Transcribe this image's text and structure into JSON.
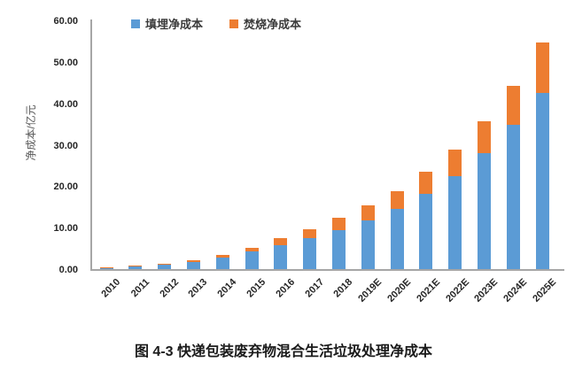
{
  "caption": "图 4-3 快递包装废弃物混合生活垃圾处理净成本",
  "colors": {
    "background": "#FFFFFF",
    "axis": "#A6A6A6",
    "tick_text": "#262626",
    "axis_title_text": "#595959",
    "caption_text": "#1A1A1A",
    "landfill_blue": "#5B9BD5",
    "incineration_orange": "#ED7D31"
  },
  "chart_data": {
    "type": "bar",
    "stacked": true,
    "title": "",
    "xlabel": "",
    "ylabel": "净成本/亿元",
    "ylim": [
      0,
      60
    ],
    "ytick_step": 10,
    "ytick_labels": [
      "0.00",
      "10.00",
      "20.00",
      "30.00",
      "40.00",
      "50.00",
      "60.00"
    ],
    "grid": false,
    "legend_position": "top",
    "categories": [
      "2010",
      "2011",
      "2012",
      "2013",
      "2014",
      "2015",
      "2016",
      "2017",
      "2018",
      "2019E",
      "2020E",
      "2021E",
      "2022E",
      "2023E",
      "2024E",
      "2025E"
    ],
    "series": [
      {
        "name": "填埋净成本",
        "color": "#5B9BD5",
        "values": [
          0.55,
          0.85,
          1.3,
          2.0,
          2.9,
          4.4,
          6.0,
          7.7,
          9.6,
          12.0,
          14.7,
          18.4,
          22.6,
          28.1,
          35.0,
          42.6
        ]
      },
      {
        "name": "焚烧净成本",
        "color": "#ED7D31",
        "values": [
          0.1,
          0.2,
          0.3,
          0.45,
          0.7,
          0.9,
          1.7,
          2.2,
          3.0,
          3.5,
          4.4,
          5.2,
          6.4,
          7.8,
          9.5,
          12.2
        ]
      }
    ],
    "totals": [
      0.65,
      1.05,
      1.6,
      2.45,
      3.6,
      5.3,
      7.7,
      9.9,
      12.6,
      15.5,
      19.1,
      23.6,
      29.0,
      35.9,
      44.5,
      54.8
    ]
  }
}
